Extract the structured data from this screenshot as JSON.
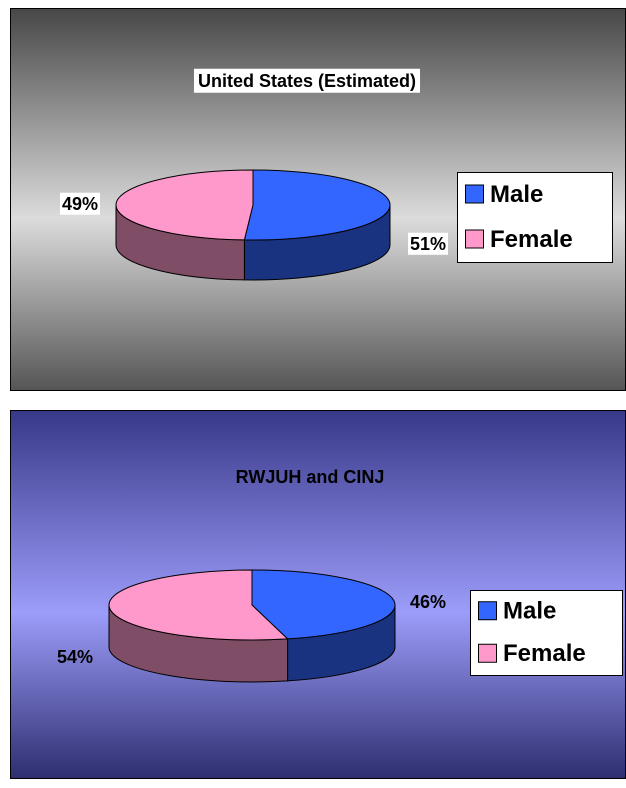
{
  "chart_data": [
    {
      "type": "pie",
      "title": "United States (Estimated)",
      "categories": [
        "Male",
        "Female"
      ],
      "values": [
        51,
        49
      ],
      "value_labels": [
        "51%",
        "49%"
      ],
      "colors": [
        "#3366ff",
        "#ff99cc"
      ],
      "legend": "right"
    },
    {
      "type": "pie",
      "title": "RWJUH and CINJ",
      "categories": [
        "Male",
        "Female"
      ],
      "values": [
        46,
        54
      ],
      "value_labels": [
        "46%",
        "54%"
      ],
      "colors": [
        "#3366ff",
        "#ff99cc"
      ],
      "legend": "right"
    }
  ]
}
